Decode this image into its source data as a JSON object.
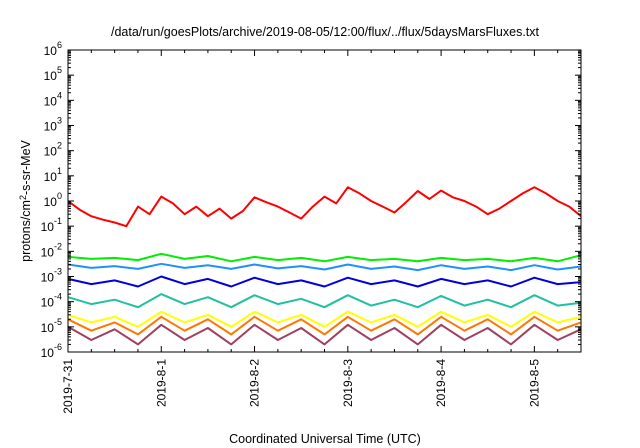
{
  "chart_data": {
    "type": "line",
    "title": "/data/run/goesPlots/archive/2019-08-05/12:00/flux/../flux/5daysMarsFluxes.txt",
    "xlabel": "Coordinated Universal Time (UTC)",
    "ylabel": {
      "pre": "protons/cm",
      "sup": "2",
      "post": "-s-sr-MeV"
    },
    "yscale": "log",
    "ylim": [
      1e-06,
      1000000.0
    ],
    "xlim": [
      "2019-07-31T00:00",
      "2019-08-05T12:00"
    ],
    "grid": false,
    "legend": "none",
    "x_ticks": [
      "2019-7-31",
      "2019-8-1",
      "2019-8-2",
      "2019-8-3",
      "2019-8-4",
      "2019-8-5"
    ],
    "y_ticks": [
      {
        "base": "10",
        "exp": "-6"
      },
      {
        "base": "10",
        "exp": "-5"
      },
      {
        "base": "10",
        "exp": "-4"
      },
      {
        "base": "10",
        "exp": "-3"
      },
      {
        "base": "10",
        "exp": "-2"
      },
      {
        "base": "10",
        "exp": "-1"
      },
      {
        "base": "10",
        "exp": "0"
      },
      {
        "base": "10",
        "exp": "1"
      },
      {
        "base": "10",
        "exp": "2"
      },
      {
        "base": "10",
        "exp": "3"
      },
      {
        "base": "10",
        "exp": "4"
      },
      {
        "base": "10",
        "exp": "5"
      },
      {
        "base": "10",
        "exp": "6"
      }
    ],
    "series": [
      {
        "color": "#ff0000",
        "x": [
          "2019-07-31T00:00",
          "2019-07-31T03:00",
          "2019-07-31T06:00",
          "2019-07-31T09:00",
          "2019-07-31T12:00",
          "2019-07-31T15:00",
          "2019-07-31T18:00",
          "2019-07-31T21:00",
          "2019-08-01T00:00",
          "2019-08-01T03:00",
          "2019-08-01T06:00",
          "2019-08-01T09:00",
          "2019-08-01T12:00",
          "2019-08-01T15:00",
          "2019-08-01T18:00",
          "2019-08-01T21:00",
          "2019-08-02T00:00",
          "2019-08-02T03:00",
          "2019-08-02T06:00",
          "2019-08-02T09:00",
          "2019-08-02T12:00",
          "2019-08-02T15:00",
          "2019-08-02T18:00",
          "2019-08-02T21:00",
          "2019-08-03T00:00",
          "2019-08-03T03:00",
          "2019-08-03T06:00",
          "2019-08-03T09:00",
          "2019-08-03T12:00",
          "2019-08-03T15:00",
          "2019-08-03T18:00",
          "2019-08-03T21:00",
          "2019-08-04T00:00",
          "2019-08-04T03:00",
          "2019-08-04T06:00",
          "2019-08-04T09:00",
          "2019-08-04T12:00",
          "2019-08-04T15:00",
          "2019-08-04T18:00",
          "2019-08-04T21:00",
          "2019-08-05T00:00",
          "2019-08-05T03:00",
          "2019-08-05T06:00",
          "2019-08-05T09:00",
          "2019-08-05T12:00"
        ],
        "values": [
          1.0,
          0.45,
          0.25,
          0.18,
          0.14,
          0.1,
          0.6,
          0.3,
          1.5,
          0.8,
          0.3,
          0.6,
          0.25,
          0.5,
          0.2,
          0.4,
          1.4,
          0.9,
          0.6,
          0.35,
          0.2,
          0.6,
          1.5,
          0.8,
          3.5,
          2.0,
          1.0,
          0.6,
          0.35,
          0.9,
          2.5,
          1.2,
          2.6,
          1.4,
          1.0,
          0.6,
          0.3,
          0.5,
          1.0,
          2.0,
          3.5,
          2.0,
          1.0,
          0.6,
          0.25
        ]
      },
      {
        "color": "#00ee00",
        "x": [
          "2019-07-31T00:00",
          "2019-07-31T06:00",
          "2019-07-31T12:00",
          "2019-07-31T18:00",
          "2019-08-01T00:00",
          "2019-08-01T06:00",
          "2019-08-01T12:00",
          "2019-08-01T18:00",
          "2019-08-02T00:00",
          "2019-08-02T06:00",
          "2019-08-02T12:00",
          "2019-08-02T18:00",
          "2019-08-03T00:00",
          "2019-08-03T06:00",
          "2019-08-03T12:00",
          "2019-08-03T18:00",
          "2019-08-04T00:00",
          "2019-08-04T06:00",
          "2019-08-04T12:00",
          "2019-08-04T18:00",
          "2019-08-05T00:00",
          "2019-08-05T06:00",
          "2019-08-05T12:00"
        ],
        "values": [
          0.006,
          0.005,
          0.0055,
          0.0045,
          0.008,
          0.005,
          0.0065,
          0.004,
          0.006,
          0.0045,
          0.0055,
          0.004,
          0.006,
          0.0045,
          0.005,
          0.004,
          0.0055,
          0.0045,
          0.005,
          0.004,
          0.0055,
          0.004,
          0.007
        ]
      },
      {
        "color": "#1e90ff",
        "x": [
          "2019-07-31T00:00",
          "2019-07-31T06:00",
          "2019-07-31T12:00",
          "2019-07-31T18:00",
          "2019-08-01T00:00",
          "2019-08-01T06:00",
          "2019-08-01T12:00",
          "2019-08-01T18:00",
          "2019-08-02T00:00",
          "2019-08-02T06:00",
          "2019-08-02T12:00",
          "2019-08-02T18:00",
          "2019-08-03T00:00",
          "2019-08-03T06:00",
          "2019-08-03T12:00",
          "2019-08-03T18:00",
          "2019-08-04T00:00",
          "2019-08-04T06:00",
          "2019-08-04T12:00",
          "2019-08-04T18:00",
          "2019-08-05T00:00",
          "2019-08-05T06:00",
          "2019-08-05T12:00"
        ],
        "values": [
          0.003,
          0.0022,
          0.0026,
          0.002,
          0.0032,
          0.0022,
          0.0028,
          0.002,
          0.003,
          0.0021,
          0.0026,
          0.0019,
          0.003,
          0.002,
          0.0025,
          0.0018,
          0.0028,
          0.002,
          0.0025,
          0.0018,
          0.0028,
          0.0019,
          0.0025
        ]
      },
      {
        "color": "#0000dd",
        "x": [
          "2019-07-31T00:00",
          "2019-07-31T06:00",
          "2019-07-31T12:00",
          "2019-07-31T18:00",
          "2019-08-01T00:00",
          "2019-08-01T06:00",
          "2019-08-01T12:00",
          "2019-08-01T18:00",
          "2019-08-02T00:00",
          "2019-08-02T06:00",
          "2019-08-02T12:00",
          "2019-08-02T18:00",
          "2019-08-03T00:00",
          "2019-08-03T06:00",
          "2019-08-03T12:00",
          "2019-08-03T18:00",
          "2019-08-04T00:00",
          "2019-08-04T06:00",
          "2019-08-04T12:00",
          "2019-08-04T18:00",
          "2019-08-05T00:00",
          "2019-08-05T06:00",
          "2019-08-05T12:00"
        ],
        "values": [
          0.0008,
          0.0005,
          0.0007,
          0.0004,
          0.001,
          0.0005,
          0.0008,
          0.0004,
          0.0009,
          0.0005,
          0.0007,
          0.0004,
          0.0009,
          0.0005,
          0.0007,
          0.0004,
          0.0008,
          0.0005,
          0.0007,
          0.0004,
          0.0009,
          0.0005,
          0.0006
        ]
      },
      {
        "color": "#20c0a0",
        "x": [
          "2019-07-31T00:00",
          "2019-07-31T06:00",
          "2019-07-31T12:00",
          "2019-07-31T18:00",
          "2019-08-01T00:00",
          "2019-08-01T06:00",
          "2019-08-01T12:00",
          "2019-08-01T18:00",
          "2019-08-02T00:00",
          "2019-08-02T06:00",
          "2019-08-02T12:00",
          "2019-08-02T18:00",
          "2019-08-03T00:00",
          "2019-08-03T06:00",
          "2019-08-03T12:00",
          "2019-08-03T18:00",
          "2019-08-04T00:00",
          "2019-08-04T06:00",
          "2019-08-04T12:00",
          "2019-08-04T18:00",
          "2019-08-05T00:00",
          "2019-08-05T06:00",
          "2019-08-05T12:00"
        ],
        "values": [
          0.00015,
          8e-05,
          0.00012,
          6e-05,
          0.0002,
          8e-05,
          0.00015,
          6e-05,
          0.00018,
          8e-05,
          0.00013,
          6e-05,
          0.00018,
          7e-05,
          0.00012,
          6e-05,
          0.00017,
          7e-05,
          0.00012,
          6e-05,
          0.00018,
          7e-05,
          9e-05
        ]
      },
      {
        "color": "#ffff00",
        "x": [
          "2019-07-31T00:00",
          "2019-07-31T06:00",
          "2019-07-31T12:00",
          "2019-07-31T18:00",
          "2019-08-01T00:00",
          "2019-08-01T06:00",
          "2019-08-01T12:00",
          "2019-08-01T18:00",
          "2019-08-02T00:00",
          "2019-08-02T06:00",
          "2019-08-02T12:00",
          "2019-08-02T18:00",
          "2019-08-03T00:00",
          "2019-08-03T06:00",
          "2019-08-03T12:00",
          "2019-08-03T18:00",
          "2019-08-04T00:00",
          "2019-08-04T06:00",
          "2019-08-04T12:00",
          "2019-08-04T18:00",
          "2019-08-05T00:00",
          "2019-08-05T06:00",
          "2019-08-05T12:00"
        ],
        "values": [
          3e-05,
          1.5e-05,
          2.5e-05,
          1e-05,
          4e-05,
          1.5e-05,
          3e-05,
          1e-05,
          4e-05,
          1.5e-05,
          3e-05,
          1e-05,
          4e-05,
          1.5e-05,
          3e-05,
          1e-05,
          4e-05,
          1.5e-05,
          3e-05,
          1e-05,
          4e-05,
          1.5e-05,
          2.5e-05
        ]
      },
      {
        "color": "#ff7700",
        "x": [
          "2019-07-31T00:00",
          "2019-07-31T06:00",
          "2019-07-31T12:00",
          "2019-07-31T18:00",
          "2019-08-01T00:00",
          "2019-08-01T06:00",
          "2019-08-01T12:00",
          "2019-08-01T18:00",
          "2019-08-02T00:00",
          "2019-08-02T06:00",
          "2019-08-02T12:00",
          "2019-08-02T18:00",
          "2019-08-03T00:00",
          "2019-08-03T06:00",
          "2019-08-03T12:00",
          "2019-08-03T18:00",
          "2019-08-04T00:00",
          "2019-08-04T06:00",
          "2019-08-04T12:00",
          "2019-08-04T18:00",
          "2019-08-05T00:00",
          "2019-08-05T06:00",
          "2019-08-05T12:00"
        ],
        "values": [
          2e-05,
          7e-06,
          1.5e-05,
          5e-06,
          2.5e-05,
          7e-06,
          2e-05,
          5e-06,
          2.5e-05,
          7e-06,
          2e-05,
          5e-06,
          2.5e-05,
          7e-06,
          2e-05,
          5e-06,
          2.5e-05,
          7e-06,
          2e-05,
          5e-06,
          2.5e-05,
          7e-06,
          1.5e-05
        ]
      },
      {
        "color": "#a04060",
        "x": [
          "2019-07-31T00:00",
          "2019-07-31T06:00",
          "2019-07-31T12:00",
          "2019-07-31T18:00",
          "2019-08-01T00:00",
          "2019-08-01T06:00",
          "2019-08-01T12:00",
          "2019-08-01T18:00",
          "2019-08-02T00:00",
          "2019-08-02T06:00",
          "2019-08-02T12:00",
          "2019-08-02T18:00",
          "2019-08-03T00:00",
          "2019-08-03T06:00",
          "2019-08-03T12:00",
          "2019-08-03T18:00",
          "2019-08-04T00:00",
          "2019-08-04T06:00",
          "2019-08-04T12:00",
          "2019-08-04T18:00",
          "2019-08-05T00:00",
          "2019-08-05T06:00",
          "2019-08-05T12:00"
        ],
        "values": [
          1e-05,
          3e-06,
          8e-06,
          2e-06,
          1.2e-05,
          3e-06,
          9e-06,
          2e-06,
          1.2e-05,
          3e-06,
          9e-06,
          2e-06,
          1.2e-05,
          3e-06,
          9e-06,
          2e-06,
          1.2e-05,
          3e-06,
          9e-06,
          2e-06,
          1.2e-05,
          3e-06,
          8e-06
        ]
      }
    ]
  }
}
